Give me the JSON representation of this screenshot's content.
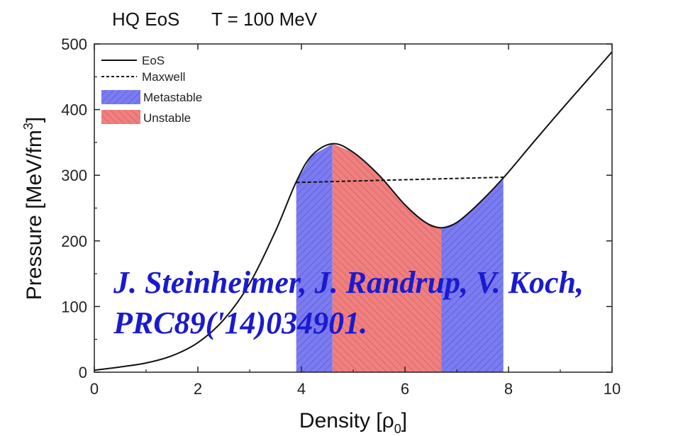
{
  "header": {
    "eos_label": "HQ EoS",
    "temp_label": "T = 100 MeV"
  },
  "citation": {
    "line1": "J. Steinheimer, J. Randrup, V. Koch,",
    "line2": "PRC89('14)034901."
  },
  "colors": {
    "metastable": "#7b7bf2",
    "unstable": "#f08080",
    "curve": "#111111",
    "citation": "#1a1acf"
  },
  "chart_data": {
    "type": "line",
    "xlabel": "Density [ρ0]",
    "ylabel": "Pressure [MeV/fm3]",
    "xlim": [
      0,
      10
    ],
    "ylim": [
      0,
      500
    ],
    "xticks": [
      0,
      2,
      4,
      6,
      8,
      10
    ],
    "yticks": [
      0,
      100,
      200,
      300,
      400,
      500
    ],
    "grid": false,
    "legend_position": "top-left",
    "series": [
      {
        "name": "EoS",
        "style": "solid",
        "x": [
          0,
          0.5,
          1,
          1.5,
          2,
          2.5,
          3,
          3.5,
          3.9,
          4.2,
          4.6,
          5.0,
          5.5,
          6.0,
          6.4,
          6.7,
          7.0,
          7.4,
          7.9,
          8.5,
          9.0,
          9.5,
          10
        ],
        "y": [
          3,
          8,
          14,
          25,
          45,
          80,
          135,
          215,
          290,
          330,
          348,
          335,
          300,
          255,
          228,
          220,
          228,
          255,
          296,
          352,
          398,
          443,
          488
        ]
      },
      {
        "name": "Maxwell",
        "style": "dashed",
        "x": [
          3.9,
          7.9
        ],
        "y": [
          289,
          297
        ]
      }
    ],
    "regions": [
      {
        "name": "Metastable",
        "x_range": [
          3.9,
          4.6
        ]
      },
      {
        "name": "Unstable",
        "x_range": [
          4.6,
          6.7
        ]
      },
      {
        "name": "Metastable",
        "x_range": [
          6.7,
          7.9
        ]
      }
    ],
    "legend": [
      {
        "label": "EoS",
        "kind": "solid-line"
      },
      {
        "label": "Maxwell",
        "kind": "dashed-line"
      },
      {
        "label": "Metastable",
        "kind": "metastable-swatch"
      },
      {
        "label": "Unstable",
        "kind": "unstable-swatch"
      }
    ]
  }
}
